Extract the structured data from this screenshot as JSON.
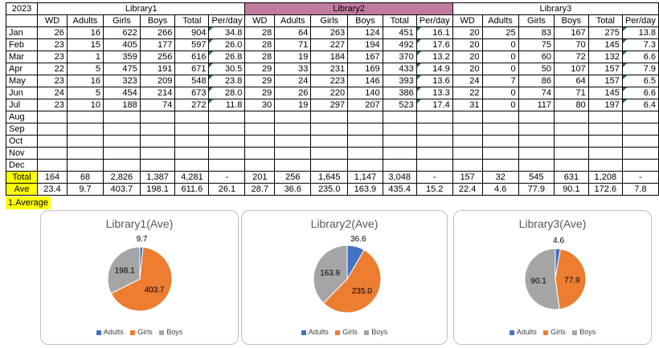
{
  "table": {
    "year": "2023",
    "library_titles": [
      "Library1",
      "Library2",
      "Library3"
    ],
    "col_headers": [
      "WD",
      "Adults",
      "Girls",
      "Boys",
      "Total",
      "Per/day"
    ],
    "rows": [
      {
        "month": "Jan",
        "vals": [
          [
            "26",
            "16",
            "622",
            "266",
            "904",
            "34.8"
          ],
          [
            "28",
            "64",
            "263",
            "124",
            "451",
            "16.1"
          ],
          [
            "20",
            "25",
            "83",
            "167",
            "275",
            "13.8"
          ]
        ]
      },
      {
        "month": "Feb",
        "vals": [
          [
            "23",
            "15",
            "405",
            "177",
            "597",
            "26.0"
          ],
          [
            "28",
            "71",
            "227",
            "194",
            "492",
            "17.6"
          ],
          [
            "20",
            "0",
            "75",
            "70",
            "145",
            "7.3"
          ]
        ]
      },
      {
        "month": "Mar",
        "vals": [
          [
            "23",
            "1",
            "359",
            "256",
            "616",
            "26.8"
          ],
          [
            "28",
            "19",
            "184",
            "167",
            "370",
            "13.2"
          ],
          [
            "20",
            "0",
            "60",
            "72",
            "132",
            "6.6"
          ]
        ]
      },
      {
        "month": "Apr",
        "vals": [
          [
            "22",
            "5",
            "475",
            "191",
            "671",
            "30.5"
          ],
          [
            "29",
            "33",
            "231",
            "169",
            "433",
            "14.9"
          ],
          [
            "20",
            "0",
            "50",
            "107",
            "157",
            "7.9"
          ]
        ]
      },
      {
        "month": "May",
        "vals": [
          [
            "23",
            "16",
            "323",
            "209",
            "548",
            "23.8"
          ],
          [
            "29",
            "24",
            "223",
            "146",
            "393",
            "13.6"
          ],
          [
            "24",
            "7",
            "86",
            "64",
            "157",
            "6.5"
          ]
        ]
      },
      {
        "month": "Jun",
        "vals": [
          [
            "24",
            "5",
            "454",
            "214",
            "673",
            "28.0"
          ],
          [
            "29",
            "26",
            "220",
            "140",
            "386",
            "13.3"
          ],
          [
            "22",
            "0",
            "74",
            "71",
            "145",
            "6.6"
          ]
        ]
      },
      {
        "month": "Jul",
        "vals": [
          [
            "23",
            "10",
            "188",
            "74",
            "272",
            "11.8"
          ],
          [
            "30",
            "19",
            "297",
            "207",
            "523",
            "17.4"
          ],
          [
            "31",
            "0",
            "117",
            "80",
            "197",
            "6.4"
          ]
        ]
      },
      {
        "month": "Aug",
        "vals": null
      },
      {
        "month": "Sep",
        "vals": null
      },
      {
        "month": "Oct",
        "vals": null
      },
      {
        "month": "Nov",
        "vals": null
      },
      {
        "month": "Dec",
        "vals": null
      }
    ],
    "total": {
      "label": "Total",
      "vals": [
        [
          "164",
          "68",
          "2,826",
          "1,387",
          "4,281",
          "-"
        ],
        [
          "201",
          "256",
          "1,645",
          "1,147",
          "3,048",
          "-"
        ],
        [
          "157",
          "32",
          "545",
          "631",
          "1,208",
          "-"
        ]
      ]
    },
    "ave": {
      "label": "Ave",
      "vals": [
        [
          "23.4",
          "9.7",
          "403.7",
          "198.1",
          "611.6",
          "26.1"
        ],
        [
          "28.7",
          "36.6",
          "235.0",
          "163.9",
          "435.4",
          "15.2"
        ],
        [
          "22.4",
          "4.6",
          "77.9",
          "90.1",
          "172.6",
          "7.8"
        ]
      ]
    }
  },
  "note": "1.Average",
  "colors": {
    "adults": "#4472c4",
    "girls": "#ed7d31",
    "boys": "#a5a5a5",
    "library2_header": "#c27ba0",
    "highlight": "#ffff00"
  },
  "chart_data": [
    {
      "type": "pie",
      "title": "Library1(Ave)",
      "categories": [
        "Adults",
        "Girls",
        "Boys"
      ],
      "values": [
        9.7,
        403.7,
        198.1
      ],
      "data_labels": [
        "9.7",
        "403.7",
        "198.1"
      ],
      "legend": "bottom"
    },
    {
      "type": "pie",
      "title": "Library2(Ave)",
      "categories": [
        "Adults",
        "Girls",
        "Boys"
      ],
      "values": [
        36.6,
        235.0,
        163.9
      ],
      "data_labels": [
        "36.6",
        "235.0",
        "163.9"
      ],
      "legend": "bottom"
    },
    {
      "type": "pie",
      "title": "Library3(Ave)",
      "categories": [
        "Adults",
        "Girls",
        "Boys"
      ],
      "values": [
        4.6,
        77.9,
        90.1
      ],
      "data_labels": [
        "4.6",
        "77.9",
        "90.1"
      ],
      "legend": "bottom"
    }
  ]
}
